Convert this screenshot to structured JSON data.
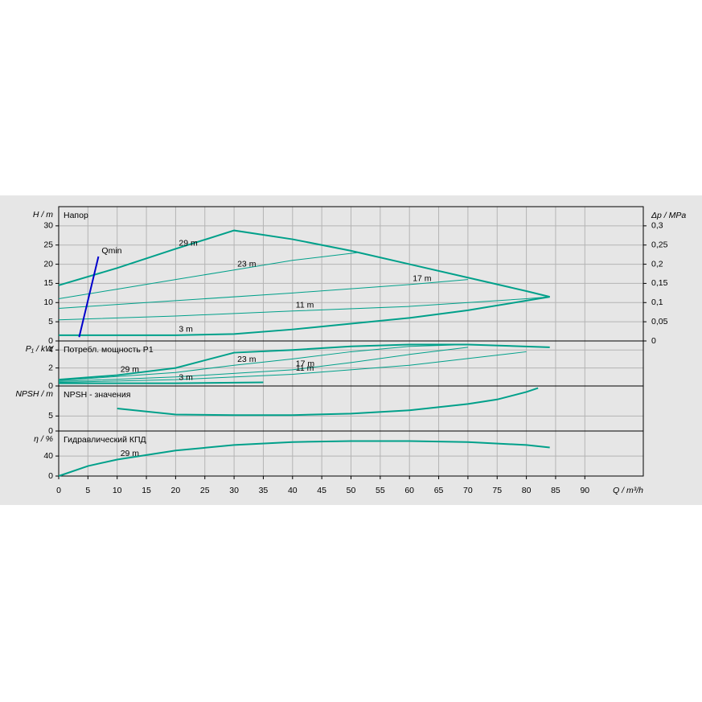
{
  "chart_data": [
    {
      "type": "line",
      "title": "Напор",
      "ylabel": "H / m",
      "y2label": "Δp / MPa",
      "xlim": [
        0,
        100
      ],
      "xticks": [
        0,
        5,
        10,
        15,
        20,
        25,
        30,
        35,
        40,
        45,
        50,
        55,
        60,
        65,
        70,
        75,
        80,
        85,
        90
      ],
      "ylim": [
        0,
        35
      ],
      "yticks": [
        0,
        5,
        10,
        15,
        20,
        25,
        30
      ],
      "y2lim": [
        0,
        0.35
      ],
      "y2ticks": [
        0,
        {
          "value": 0.05,
          "label": "0,05"
        },
        {
          "value": 0.1,
          "label": "0,1"
        },
        {
          "value": 0.15,
          "label": "0,15"
        },
        {
          "value": 0.2,
          "label": "0,2"
        },
        {
          "value": 0.25,
          "label": "0,25"
        },
        {
          "value": 0.3,
          "label": "0,3"
        }
      ],
      "grid": true,
      "series": [
        {
          "name": "29 m",
          "color": "#00a08a",
          "line_width": 2,
          "x": [
            0,
            10,
            20,
            30,
            40,
            50,
            60,
            70,
            80,
            84
          ],
          "values": [
            14.5,
            19,
            24,
            28.8,
            26.5,
            23.5,
            20,
            16.5,
            13,
            11.5
          ]
        },
        {
          "name": "23 m",
          "color": "#00a08a",
          "line_width": 1,
          "x": [
            0,
            10,
            20,
            30,
            40,
            51
          ],
          "values": [
            11,
            13.5,
            16,
            18.5,
            21,
            23
          ]
        },
        {
          "name": "17 m",
          "color": "#00a08a",
          "line_width": 1,
          "x": [
            0,
            20,
            40,
            60,
            70
          ],
          "values": [
            8.5,
            10.5,
            12.5,
            14.7,
            16
          ]
        },
        {
          "name": "11 m",
          "color": "#00a08a",
          "line_width": 1,
          "x": [
            0,
            20,
            40,
            60,
            80,
            84
          ],
          "values": [
            5.5,
            6.5,
            7.8,
            9,
            11,
            11.5
          ]
        },
        {
          "name": "3 m",
          "color": "#00a08a",
          "line_width": 2,
          "x": [
            0,
            20,
            30,
            40,
            50,
            60,
            70,
            80,
            84
          ],
          "values": [
            1.5,
            1.5,
            1.8,
            3,
            4.5,
            6,
            8,
            10.5,
            11.5
          ]
        },
        {
          "name": "Qmin",
          "color": "#0000cc",
          "line_width": 2,
          "x": [
            3.5,
            6.8
          ],
          "values": [
            1,
            22
          ]
        }
      ]
    },
    {
      "type": "line",
      "title": "Потребл. мощность P1",
      "ylabel": "P₁ / kW",
      "xlim": [
        0,
        100
      ],
      "xticks": [
        0,
        5,
        10,
        15,
        20,
        25,
        30,
        35,
        40,
        45,
        50,
        55,
        60,
        65,
        70,
        75,
        80,
        85,
        90
      ],
      "ylim": [
        0,
        5
      ],
      "yticks": [
        0,
        2,
        4
      ],
      "grid": true,
      "series": [
        {
          "name": "29 m",
          "color": "#00a08a",
          "line_width": 2,
          "x": [
            0,
            10,
            20,
            30,
            40,
            50,
            60,
            70,
            84
          ],
          "values": [
            0.7,
            1.2,
            2,
            3.7,
            4,
            4.4,
            4.6,
            4.6,
            4.3
          ]
        },
        {
          "name": "23 m",
          "color": "#00a08a",
          "line_width": 1,
          "x": [
            0,
            20,
            30,
            40,
            50,
            60,
            70
          ],
          "values": [
            0.6,
            1.5,
            2.3,
            3,
            3.8,
            4.4,
            4.6
          ]
        },
        {
          "name": "17 m",
          "color": "#00a08a",
          "line_width": 1,
          "x": [
            0,
            20,
            40,
            50,
            60,
            70
          ],
          "values": [
            0.5,
            1,
            1.8,
            2.6,
            3.5,
            4.3
          ]
        },
        {
          "name": "11 m",
          "color": "#00a08a",
          "line_width": 1,
          "x": [
            0,
            20,
            40,
            60,
            80
          ],
          "values": [
            0.4,
            0.7,
            1.3,
            2.3,
            3.8
          ]
        },
        {
          "name": "3 m",
          "color": "#00a08a",
          "line_width": 2,
          "x": [
            0,
            20,
            35
          ],
          "values": [
            0.3,
            0.3,
            0.4
          ]
        }
      ]
    },
    {
      "type": "line",
      "title": "NPSH - значения",
      "ylabel": "NPSH / m",
      "xlim": [
        0,
        100
      ],
      "xticks": [
        0,
        5,
        10,
        15,
        20,
        25,
        30,
        35,
        40,
        45,
        50,
        55,
        60,
        65,
        70,
        75,
        80,
        85,
        90
      ],
      "ylim": [
        0,
        15
      ],
      "yticks": [
        0,
        5
      ],
      "grid": true,
      "series": [
        {
          "color": "#00a08a",
          "line_width": 2,
          "x": [
            10,
            20,
            30,
            40,
            50,
            60,
            70,
            75,
            80,
            82
          ],
          "values": [
            7.5,
            5.5,
            5.3,
            5.3,
            5.8,
            6.9,
            9,
            10.5,
            13,
            14.3
          ]
        }
      ]
    },
    {
      "type": "line",
      "title": "Гидравлический КПД",
      "ylabel": "η / %",
      "xlabel": "Q / m³/h",
      "xlim": [
        0,
        100
      ],
      "xticks": [
        0,
        5,
        10,
        15,
        20,
        25,
        30,
        35,
        40,
        45,
        50,
        55,
        60,
        65,
        70,
        75,
        80,
        85,
        90
      ],
      "ylim": [
        0,
        90
      ],
      "yticks": [
        0,
        40
      ],
      "grid": true,
      "series": [
        {
          "name": "29 m",
          "color": "#00a08a",
          "line_width": 2,
          "x": [
            0,
            5,
            10,
            20,
            30,
            40,
            50,
            60,
            70,
            80,
            84
          ],
          "values": [
            0,
            20,
            33,
            51,
            62,
            68,
            70,
            70,
            68,
            62,
            57
          ]
        }
      ]
    }
  ]
}
